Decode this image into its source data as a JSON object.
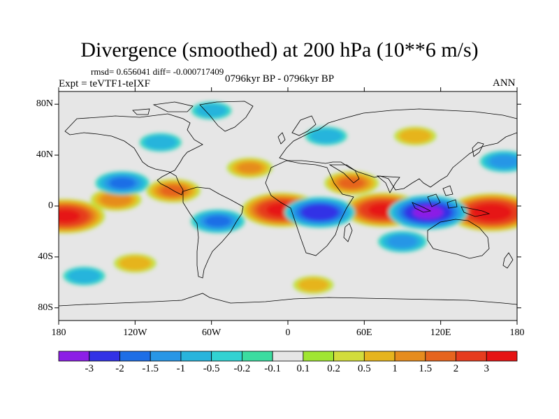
{
  "title": "Divergence (smoothed) at 200 hPa (10**6 m/s)",
  "stats": "rmsd= 0.656041 diff= -0.000717409",
  "experiment": "Expt = teVTF1-teIXF",
  "period": "0796kyr BP - 0796kyr BP",
  "season": "ANN",
  "map": {
    "projection": "cylindrical equidistant",
    "lon_range": [
      -180,
      180
    ],
    "lat_range": [
      -90,
      90
    ],
    "y_ticks": [
      {
        "label": "80N",
        "lat": 80
      },
      {
        "label": "40N",
        "lat": 40
      },
      {
        "label": "0",
        "lat": 0
      },
      {
        "label": "40S",
        "lat": -40
      },
      {
        "label": "80S",
        "lat": -80
      }
    ],
    "x_ticks": [
      {
        "label": "180",
        "lon": -180
      },
      {
        "label": "120W",
        "lon": -120
      },
      {
        "label": "60W",
        "lon": -60
      },
      {
        "label": "0",
        "lon": 0
      },
      {
        "label": "60E",
        "lon": 60
      },
      {
        "label": "120E",
        "lon": 120
      },
      {
        "label": "180",
        "lon": 180
      }
    ]
  },
  "colorbar": {
    "labels": [
      "-3",
      "-2",
      "-1.5",
      "-1",
      "-0.5",
      "-0.2",
      "-0.1",
      "0.1",
      "0.2",
      "0.5",
      "1",
      "1.5",
      "2",
      "3"
    ],
    "colors": [
      "#8c1ee6",
      "#3232e6",
      "#1e6ee6",
      "#2896e6",
      "#28b4dc",
      "#32d2d2",
      "#3cdca0",
      "#e6e6e6",
      "#a0e632",
      "#d2dc3c",
      "#e6b41e",
      "#e68c1e",
      "#e6641e",
      "#e63c1e",
      "#e61414"
    ]
  },
  "chart_data": {
    "type": "heatmap",
    "title": "Divergence (smoothed) at 200 hPa (10**6 m/s)",
    "field": "divergence_200hPa",
    "units": "10**6 m/s",
    "levels": [
      -3,
      -2,
      -1.5,
      -1,
      -0.5,
      -0.2,
      -0.1,
      0.1,
      0.2,
      0.5,
      1,
      1.5,
      2,
      3
    ],
    "features": [
      {
        "name": "west pacific max",
        "lon": 160,
        "lat": -5,
        "value": 3.5
      },
      {
        "name": "central pacific max",
        "lon": -175,
        "lat": -8,
        "value": 3
      },
      {
        "name": "indian ocean max",
        "lon": 75,
        "lat": -3,
        "value": 3
      },
      {
        "name": "atlantic max",
        "lon": -5,
        "lat": -3,
        "value": 3
      },
      {
        "name": "central america",
        "lon": -90,
        "lat": 12,
        "value": 1.5
      },
      {
        "name": "arabia",
        "lon": 50,
        "lat": 18,
        "value": 1.5
      },
      {
        "name": "north atlantic",
        "lon": -30,
        "lat": 30,
        "value": 1.0
      },
      {
        "name": "east pacific band",
        "lon": -135,
        "lat": 5,
        "value": 1.3
      },
      {
        "name": "southern ocean",
        "lon": 20,
        "lat": -62,
        "value": 0.7
      },
      {
        "name": "south pacific",
        "lon": -120,
        "lat": -45,
        "value": 0.8
      },
      {
        "name": "siberia",
        "lon": 100,
        "lat": 55,
        "value": 0.8
      },
      {
        "name": "maritime continent min",
        "lon": 110,
        "lat": -5,
        "value": -3
      },
      {
        "name": "central africa min",
        "lon": 25,
        "lat": -5,
        "value": -2.5
      },
      {
        "name": "east pacific min",
        "lon": -130,
        "lat": 18,
        "value": -1.5
      },
      {
        "name": "south america min",
        "lon": -55,
        "lat": -12,
        "value": -1.5
      },
      {
        "name": "north pacific min",
        "lon": 170,
        "lat": 35,
        "value": -1.2
      },
      {
        "name": "south indian min",
        "lon": 90,
        "lat": -28,
        "value": -1.2
      },
      {
        "name": "north america min",
        "lon": -100,
        "lat": 50,
        "value": -0.8
      },
      {
        "name": "eurasia min",
        "lon": 30,
        "lat": 55,
        "value": -0.8
      },
      {
        "name": "southern ocean min",
        "lon": -160,
        "lat": -55,
        "value": -0.8
      },
      {
        "name": "arctic min",
        "lon": -60,
        "lat": 75,
        "value": -0.7
      }
    ]
  }
}
